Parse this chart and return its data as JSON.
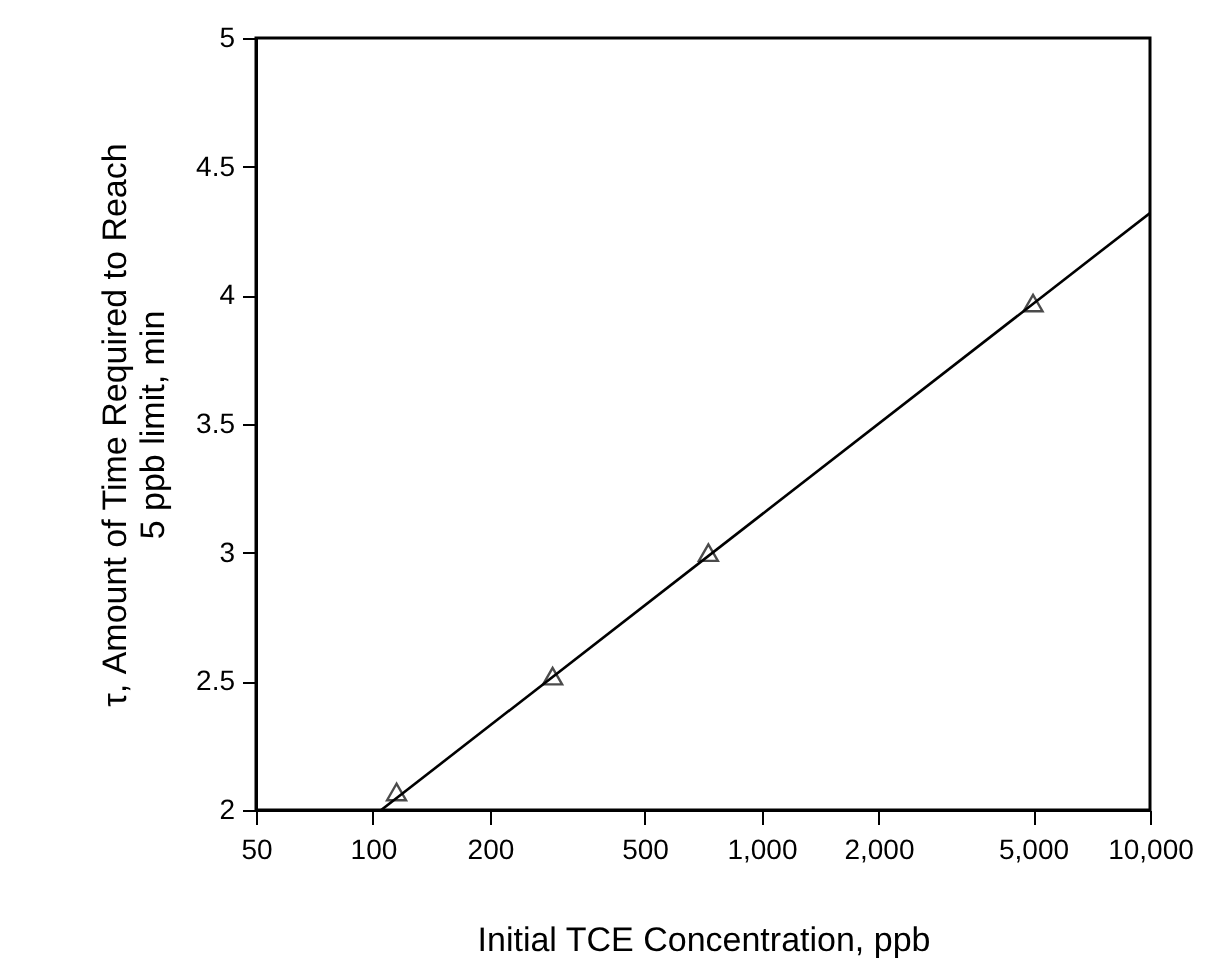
{
  "chart_data": {
    "type": "scatter",
    "xlabel": "Initial TCE Concentration, ppb",
    "ylabel": "τ, Amount of Time Required to Reach\n5 ppb limit, min",
    "log": "x",
    "xlim": [
      50,
      10000
    ],
    "xticks": [
      50,
      100,
      200,
      500,
      {
        "value": 1000,
        "label": "1,000"
      },
      {
        "value": 2000,
        "label": "2,000"
      },
      {
        "value": 5000,
        "label": "5,000"
      },
      {
        "value": 10000,
        "label": "10,000"
      }
    ],
    "ylim": [
      2,
      5
    ],
    "yticks": [
      2,
      2.5,
      3,
      3.5,
      4,
      4.5,
      5
    ],
    "grid": false,
    "series": [
      {
        "color": "#000000",
        "marker": "triangle",
        "x": [
          115,
          290,
          730,
          5000
        ],
        "values": [
          2.07,
          2.52,
          3.0,
          3.97
        ]
      },
      {
        "type": "line",
        "color": "#000000",
        "line_style": "solid",
        "x": [
          105,
          10000
        ],
        "values": [
          2.0,
          4.32
        ]
      }
    ]
  }
}
